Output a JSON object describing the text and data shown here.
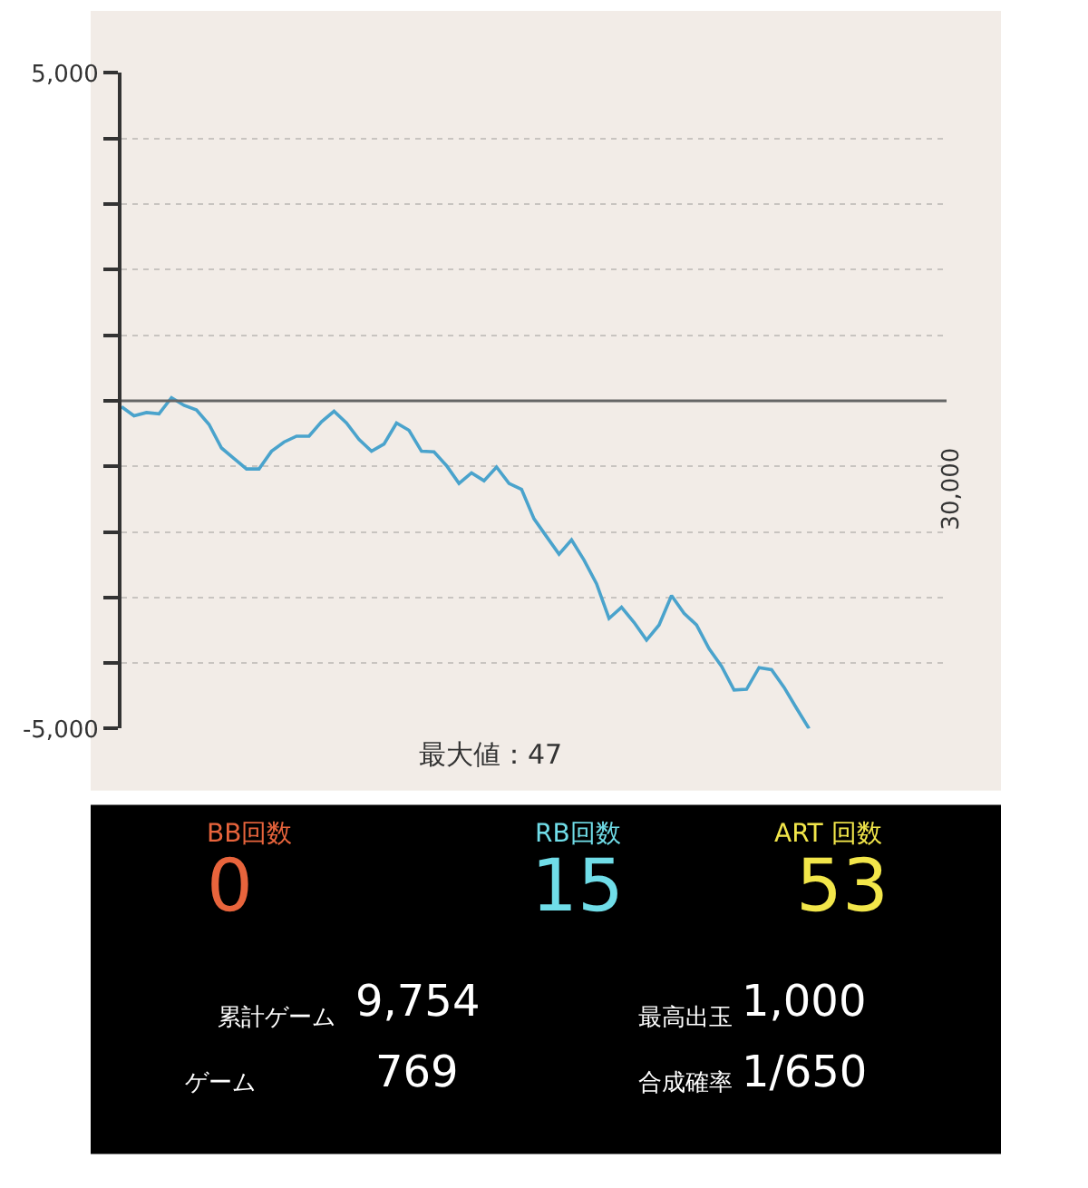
{
  "chart_data": {
    "type": "line",
    "annotations": [
      "最大値：47",
      "30,000",
      "BB回数",
      "0",
      "RB回数",
      "15",
      "ART 回数",
      "53",
      "累計ゲーム",
      "9,754",
      "最高出玉",
      "1,000",
      "ゲーム",
      "769",
      "合成確率",
      "1/650"
    ],
    "categories": [
      null,
      null,
      null,
      null,
      null,
      null,
      null,
      null,
      null,
      null,
      null,
      null,
      null,
      null,
      null,
      null,
      null,
      null,
      null,
      null,
      null,
      null,
      null,
      null,
      null,
      null,
      null,
      null,
      null,
      null,
      null,
      null,
      null,
      null,
      null,
      null,
      null,
      null,
      null,
      null,
      null,
      null,
      null,
      null,
      null,
      null,
      null,
      null,
      null,
      null,
      null,
      null,
      null,
      null,
      null,
      null,
      null,
      null,
      null,
      null,
      null,
      null,
      null,
      null,
      null,
      null,
      null
    ],
    "series": [
      {
        "color": "#4aa3cc",
        "values": [
          -90,
          -230,
          -180,
          -200,
          47,
          -70,
          -140,
          -360,
          -720,
          -880,
          -1040,
          -1040,
          -770,
          -630,
          -540,
          -540,
          -320,
          -160,
          -340,
          -590,
          -770,
          -660,
          -340,
          -450,
          -770,
          -780,
          -990,
          -1260,
          -1100,
          -1220,
          -1010,
          -1260,
          -1350,
          -1800,
          -2070,
          -2340,
          -2120,
          -2430,
          -2790,
          -3320,
          -3150,
          -3380,
          -3650,
          -3420,
          -2970,
          -3240,
          -3420,
          -3780,
          -4050,
          -4410,
          -4400,
          -4070,
          -4100,
          -4370,
          -4690,
          -5000,
          null,
          null,
          null,
          null,
          null,
          null,
          null,
          null,
          null,
          null,
          null
        ]
      }
    ],
    "ylim": [
      -5000,
      5000
    ],
    "yticks": [
      {
        "value": -5000,
        "label": "-5,000"
      },
      {
        "value": -4000,
        "label": null
      },
      {
        "value": -3000,
        "label": null
      },
      {
        "value": -2000,
        "label": null
      },
      {
        "value": -1000,
        "label": null
      },
      {
        "value": 0,
        "label": null
      },
      {
        "value": 1000,
        "label": null
      },
      {
        "value": 2000,
        "label": null
      },
      {
        "value": 3000,
        "label": null
      },
      {
        "value": 4000,
        "label": null
      },
      {
        "value": 5000,
        "label": "5,000"
      }
    ],
    "grid": "y",
    "marker": "none",
    "line_style": "solid",
    "ref_lines": [
      {
        "axis": "y",
        "value": 0,
        "color": "#666666"
      }
    ]
  }
}
